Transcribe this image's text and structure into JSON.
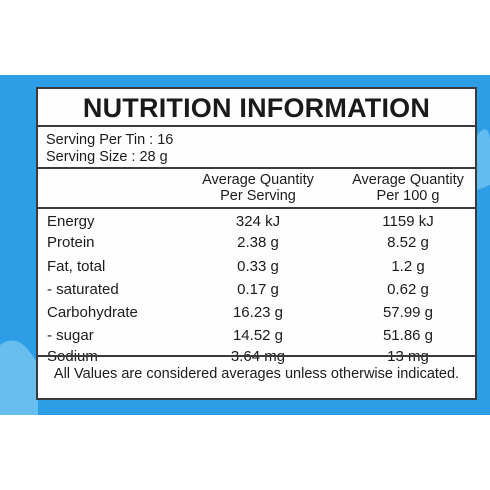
{
  "colors": {
    "background_band": "#2d9ee6",
    "panel": "#fefefe",
    "border": "#3a3a3a",
    "text": "#1c1c1c"
  },
  "panel": {
    "title": "NUTRITION INFORMATION",
    "serving_per_tin": "Serving Per Tin : 16",
    "serving_size": "Serving Size : 28 g",
    "columns": {
      "per_serving_line1": "Average Quantity",
      "per_serving_line2": "Per Serving",
      "per_100g_line1": "Average Quantity",
      "per_100g_line2": "Per 100 g"
    },
    "rows": [
      {
        "name": "Energy",
        "per_serving": "324 kJ",
        "per_100g": "1159 kJ"
      },
      {
        "name": "Protein",
        "per_serving": "2.38 g",
        "per_100g": "8.52 g"
      },
      {
        "name": "Fat, total",
        "per_serving": "0.33 g",
        "per_100g": "1.2 g"
      },
      {
        "name": "- saturated",
        "per_serving": "0.17 g",
        "per_100g": "0.62 g"
      },
      {
        "name": "Carbohydrate",
        "per_serving": "16.23 g",
        "per_100g": "57.99 g"
      },
      {
        "name": "- sugar",
        "per_serving": "14.52 g",
        "per_100g": "51.86 g"
      },
      {
        "name": "Sodium",
        "per_serving": "3.64 mg",
        "per_100g": "13 mg"
      }
    ],
    "footer": "All Values are considered averages unless otherwise indicated."
  }
}
